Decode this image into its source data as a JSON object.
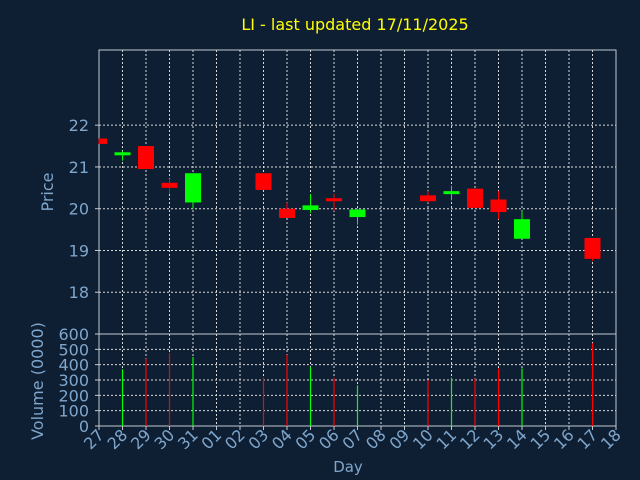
{
  "chart_data": {
    "type": "candlestick",
    "title": "LI - last updated 17/11/2025",
    "xlabel": "Day",
    "x_ticks": [
      "27",
      "28",
      "29",
      "30",
      "31",
      "01",
      "02",
      "03",
      "04",
      "05",
      "06",
      "07",
      "08",
      "09",
      "10",
      "11",
      "12",
      "13",
      "14",
      "15",
      "16",
      "17",
      "18"
    ],
    "price": {
      "ylabel": "Price",
      "ylim": [
        17,
        23.8
      ],
      "y_ticks": [
        18,
        19,
        20,
        21,
        22
      ],
      "candles": [
        {
          "day": "27",
          "open": 21.68,
          "high": 21.68,
          "low": 21.55,
          "close": 21.55
        },
        {
          "day": "28",
          "open": 21.28,
          "high": 21.38,
          "low": 21.15,
          "close": 21.35
        },
        {
          "day": "29",
          "open": 21.5,
          "high": 21.5,
          "low": 20.95,
          "close": 20.95
        },
        {
          "day": "30",
          "open": 20.62,
          "high": 20.72,
          "low": 20.35,
          "close": 20.5
        },
        {
          "day": "31",
          "open": 20.15,
          "high": 20.85,
          "low": 20.0,
          "close": 20.85
        },
        {
          "day": "03",
          "open": 20.85,
          "high": 20.85,
          "low": 20.45,
          "close": 20.45
        },
        {
          "day": "04",
          "open": 20.0,
          "high": 20.15,
          "low": 19.78,
          "close": 19.78
        },
        {
          "day": "05",
          "open": 19.97,
          "high": 20.35,
          "low": 19.9,
          "close": 20.08
        },
        {
          "day": "06",
          "open": 20.25,
          "high": 20.35,
          "low": 19.95,
          "close": 20.18
        },
        {
          "day": "07",
          "open": 19.8,
          "high": 20.0,
          "low": 19.62,
          "close": 19.98
        },
        {
          "day": "10",
          "open": 20.32,
          "high": 20.42,
          "low": 20.15,
          "close": 20.18
        },
        {
          "day": "11",
          "open": 20.35,
          "high": 20.55,
          "low": 20.2,
          "close": 20.42
        },
        {
          "day": "12",
          "open": 20.48,
          "high": 20.48,
          "low": 20.02,
          "close": 20.02
        },
        {
          "day": "13",
          "open": 20.22,
          "high": 20.42,
          "low": 19.75,
          "close": 19.92
        },
        {
          "day": "14",
          "open": 19.28,
          "high": 19.95,
          "low": 19.28,
          "close": 19.75
        },
        {
          "day": "17",
          "open": 19.3,
          "high": 19.3,
          "low": 18.75,
          "close": 18.8
        }
      ]
    },
    "volume": {
      "ylabel": "Volume (0000)",
      "ylim": [
        0,
        600
      ],
      "y_ticks": [
        0,
        100,
        200,
        300,
        400,
        500,
        600
      ],
      "bars": [
        {
          "day": "28",
          "value": 370,
          "direction": "up"
        },
        {
          "day": "29",
          "value": 440,
          "direction": "down"
        },
        {
          "day": "30",
          "value": 475,
          "direction": "down"
        },
        {
          "day": "31",
          "value": 450,
          "direction": "up"
        },
        {
          "day": "03",
          "value": 315,
          "direction": "down"
        },
        {
          "day": "04",
          "value": 465,
          "direction": "down"
        },
        {
          "day": "05",
          "value": 385,
          "direction": "up"
        },
        {
          "day": "06",
          "value": 315,
          "direction": "down"
        },
        {
          "day": "07",
          "value": 265,
          "direction": "up"
        },
        {
          "day": "10",
          "value": 300,
          "direction": "down"
        },
        {
          "day": "11",
          "value": 315,
          "direction": "up"
        },
        {
          "day": "12",
          "value": 310,
          "direction": "down"
        },
        {
          "day": "13",
          "value": 375,
          "direction": "down"
        },
        {
          "day": "14",
          "value": 375,
          "direction": "up"
        },
        {
          "day": "17",
          "value": 540,
          "direction": "down"
        }
      ]
    },
    "grid": true,
    "colors": {
      "background": "#0f1f33",
      "title": "#ffff00",
      "axis_text": "#7fa6cc",
      "axis_line": "#c0c8d0",
      "grid": "#d8d8d8",
      "up": "#00ff00",
      "down": "#ff0000"
    }
  }
}
